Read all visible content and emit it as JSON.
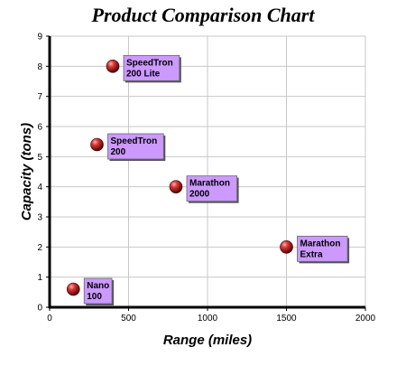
{
  "chart_data": {
    "type": "scatter",
    "title": "Product Comparison Chart",
    "xlabel": "Range (miles)",
    "ylabel": "Capacity (tons)",
    "xlim": [
      0,
      2000
    ],
    "ylim": [
      0,
      9
    ],
    "x_ticks": [
      0,
      500,
      1000,
      1500,
      2000
    ],
    "y_ticks": [
      0,
      1,
      2,
      3,
      4,
      5,
      6,
      7,
      8,
      9
    ],
    "grid": true,
    "marker_color": "#cc2222",
    "label_color": "#cc99ff",
    "points": [
      {
        "x": 150,
        "y": 0.6,
        "label": [
          "Nano",
          "100"
        ]
      },
      {
        "x": 300,
        "y": 5.4,
        "label": [
          "SpeedTron",
          "200"
        ]
      },
      {
        "x": 400,
        "y": 8.0,
        "label": [
          "SpeedTron",
          "200 Lite"
        ]
      },
      {
        "x": 800,
        "y": 4.0,
        "label": [
          "Marathon",
          "2000"
        ]
      },
      {
        "x": 1500,
        "y": 2.0,
        "label": [
          "Marathon",
          "Extra"
        ]
      }
    ]
  }
}
